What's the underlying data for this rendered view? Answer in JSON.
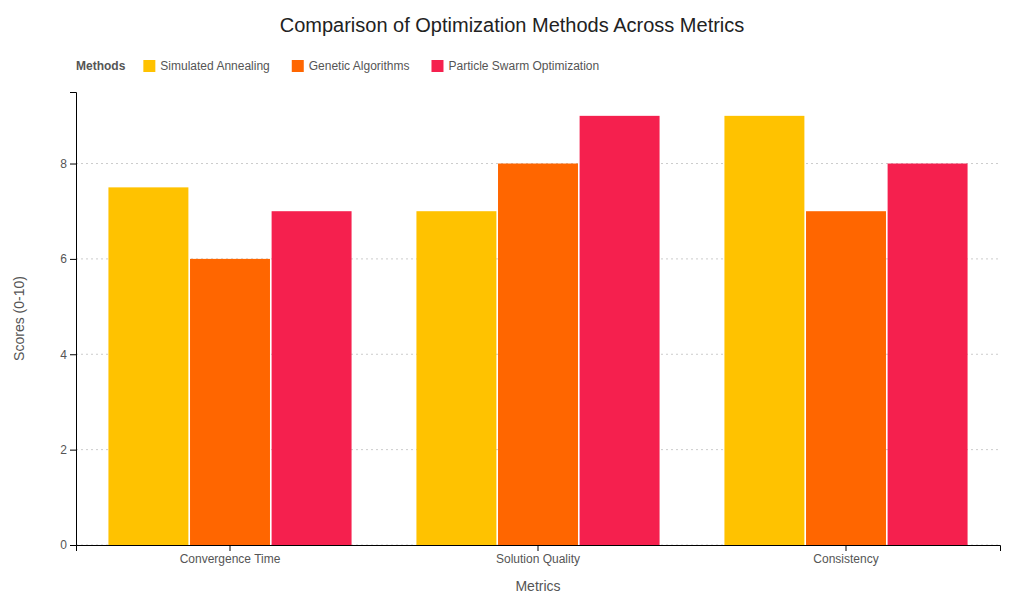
{
  "chart_data": {
    "type": "bar",
    "title": "Comparison of Optimization Methods Across Metrics",
    "xlabel": "Metrics",
    "ylabel": "Scores (0-10)",
    "legend_title": "Methods",
    "categories": [
      "Convergence Time",
      "Solution Quality",
      "Consistency"
    ],
    "series": [
      {
        "name": "Simulated Annealing",
        "color": "#FFC200",
        "values": [
          7.5,
          7.0,
          9.0
        ]
      },
      {
        "name": "Genetic Algorithms",
        "color": "#FF6600",
        "values": [
          6.0,
          8.0,
          7.0
        ]
      },
      {
        "name": "Particle Swarm Optimization",
        "color": "#F5204E",
        "values": [
          7.0,
          9.0,
          8.0
        ]
      }
    ],
    "ylim": [
      0,
      9.5
    ],
    "yticks": [
      0,
      2,
      4,
      6,
      8
    ],
    "grid": true,
    "legend": "upper left"
  }
}
